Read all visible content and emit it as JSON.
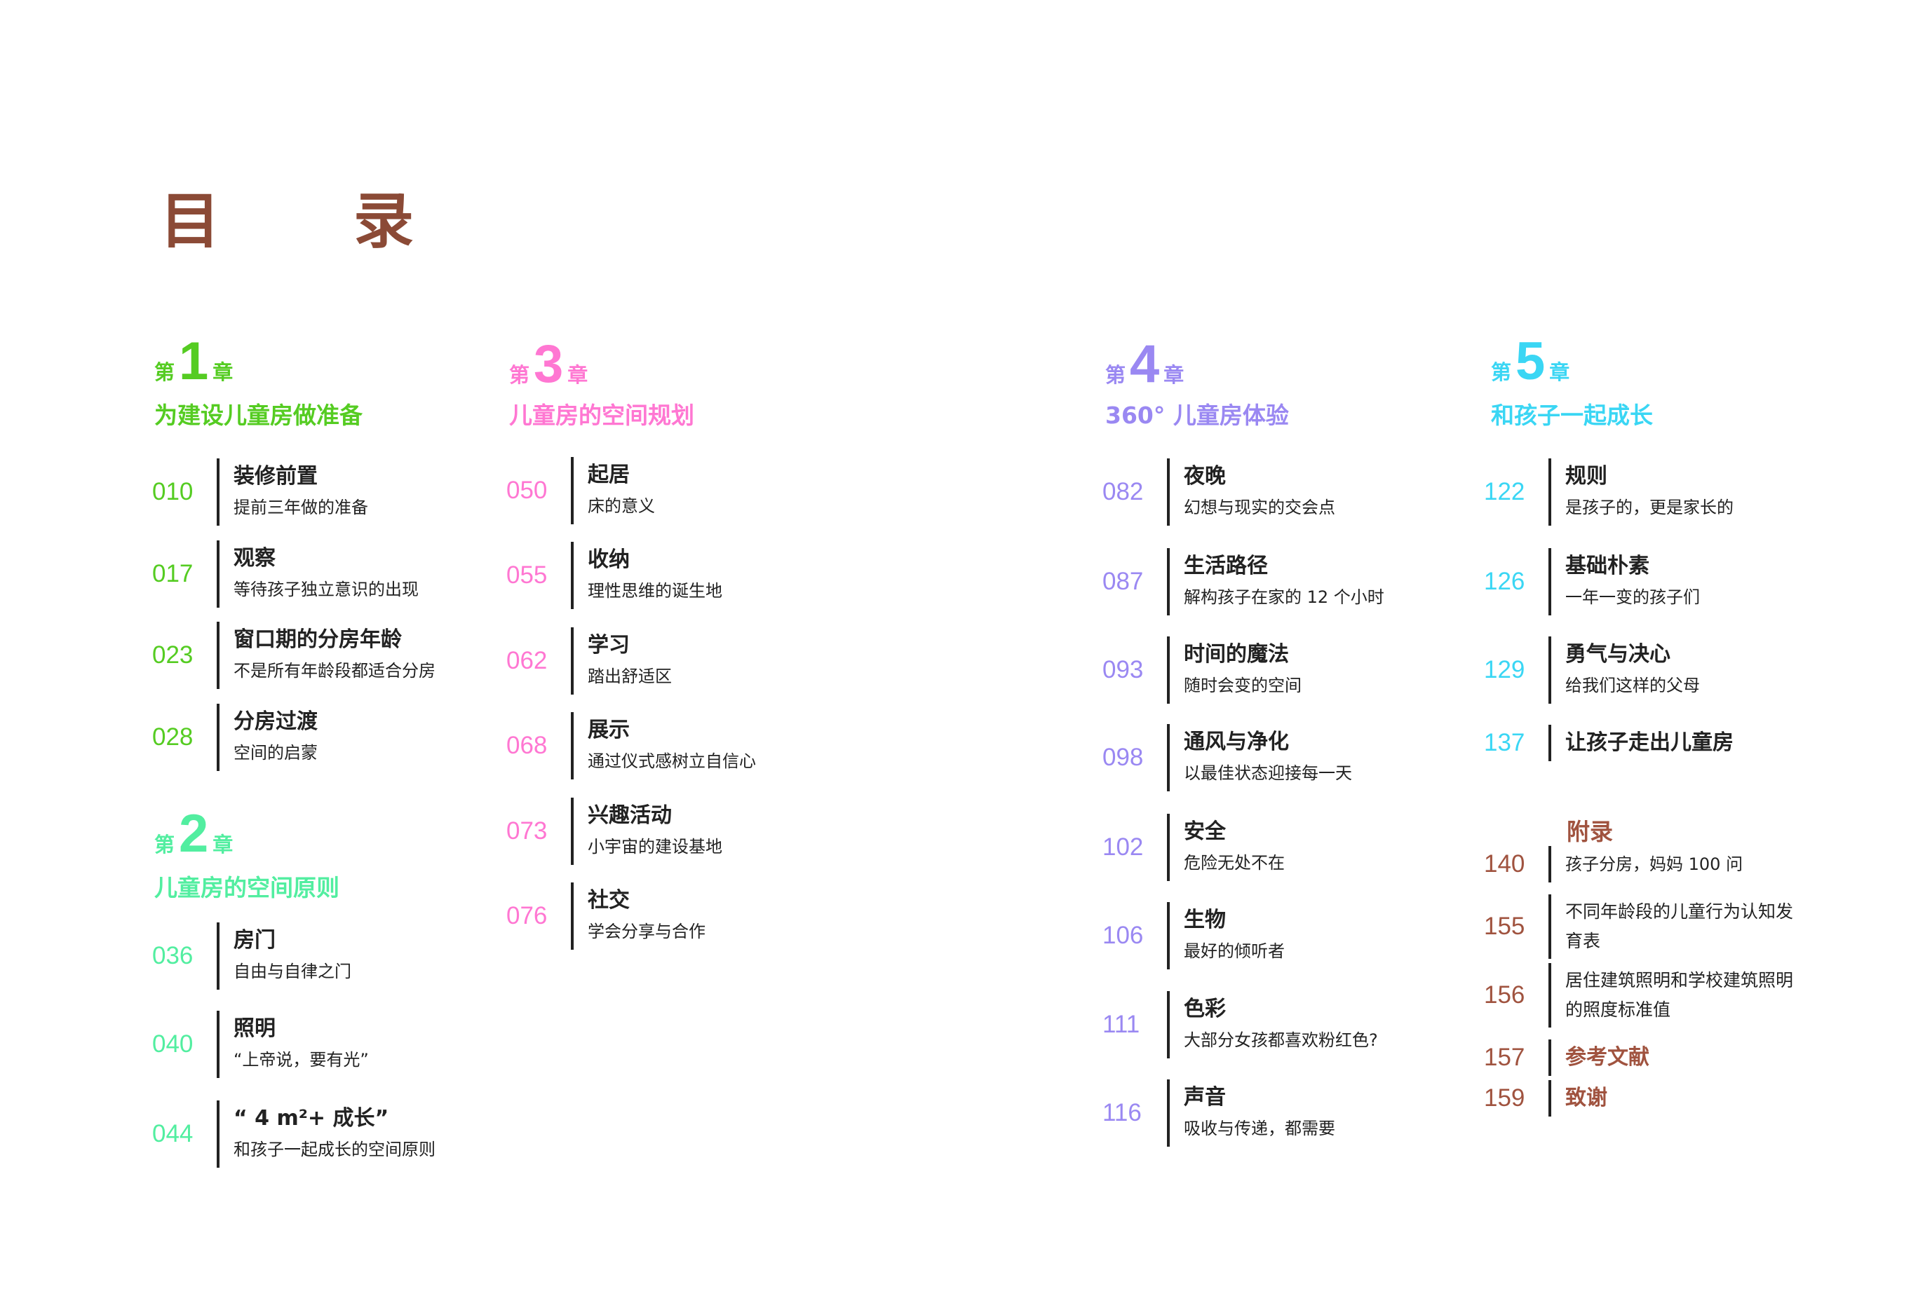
{
  "title": "目 录",
  "colors": {
    "ch1": "#55cc22",
    "ch2": "#52eea0",
    "ch3": "#ff77d2",
    "ch4": "#9a88f2",
    "ch5": "#3ad6f4",
    "appendix": "#a0533f",
    "title": "#8b4a36"
  },
  "chapters": [
    {
      "prefix": "第",
      "number": "1",
      "suffix": "章",
      "subtitle": "为建设儿童房做准备",
      "entries": [
        {
          "page": "010",
          "title": "装修前置",
          "sub": "提前三年做的准备"
        },
        {
          "page": "017",
          "title": "观察",
          "sub": "等待孩子独立意识的出现"
        },
        {
          "page": "023",
          "title": "窗口期的分房年龄",
          "sub": "不是所有年龄段都适合分房"
        },
        {
          "page": "028",
          "title": "分房过渡",
          "sub": "空间的启蒙"
        }
      ]
    },
    {
      "prefix": "第",
      "number": "2",
      "suffix": "章",
      "subtitle": "儿童房的空间原则",
      "entries": [
        {
          "page": "036",
          "title": "房门",
          "sub": "自由与自律之门"
        },
        {
          "page": "040",
          "title": "照明",
          "sub": "“上帝说，要有光”"
        },
        {
          "page": "044",
          "title": "“ 4 m²+ 成长”",
          "sub": "和孩子一起成长的空间原则"
        }
      ]
    },
    {
      "prefix": "第",
      "number": "3",
      "suffix": "章",
      "subtitle": "儿童房的空间规划",
      "entries": [
        {
          "page": "050",
          "title": "起居",
          "sub": "床的意义"
        },
        {
          "page": "055",
          "title": "收纳",
          "sub": "理性思维的诞生地"
        },
        {
          "page": "062",
          "title": "学习",
          "sub": "踏出舒适区"
        },
        {
          "page": "068",
          "title": "展示",
          "sub": "通过仪式感树立自信心"
        },
        {
          "page": "073",
          "title": "兴趣活动",
          "sub": "小宇宙的建设基地"
        },
        {
          "page": "076",
          "title": "社交",
          "sub": "学会分享与合作"
        }
      ]
    },
    {
      "prefix": "第",
      "number": "4",
      "suffix": "章",
      "subtitle": "360° 儿童房体验",
      "entries": [
        {
          "page": "082",
          "title": "夜晚",
          "sub": "幻想与现实的交会点"
        },
        {
          "page": "087",
          "title": "生活路径",
          "sub": "解构孩子在家的 12 个小时"
        },
        {
          "page": "093",
          "title": "时间的魔法",
          "sub": "随时会变的空间"
        },
        {
          "page": "098",
          "title": "通风与净化",
          "sub": "以最佳状态迎接每一天"
        },
        {
          "page": "102",
          "title": "安全",
          "sub": "危险无处不在"
        },
        {
          "page": "106",
          "title": "生物",
          "sub": "最好的倾听者"
        },
        {
          "page": "111",
          "title": "色彩",
          "sub": "大部分女孩都喜欢粉红色?"
        },
        {
          "page": "116",
          "title": "声音",
          "sub": "吸收与传递，都需要"
        }
      ]
    },
    {
      "prefix": "第",
      "number": "5",
      "suffix": "章",
      "subtitle": "和孩子一起成长",
      "entries": [
        {
          "page": "122",
          "title": "规则",
          "sub": "是孩子的，更是家长的"
        },
        {
          "page": "126",
          "title": "基础朴素",
          "sub": "一年一变的孩子们"
        },
        {
          "page": "129",
          "title": "勇气与决心",
          "sub": "给我们这样的父母"
        },
        {
          "page": "137",
          "title": "让孩子走出儿童房",
          "sub": ""
        }
      ]
    }
  ],
  "appendix": {
    "heading": "附录",
    "entries": [
      {
        "page": "140",
        "text": "孩子分房，妈妈 100 问"
      },
      {
        "page": "155",
        "text": "不同年龄段的儿童行为认知发育表"
      },
      {
        "page": "156",
        "text": "居住建筑照明和学校建筑照明的照度标准值"
      },
      {
        "page": "157",
        "text": "参考文献"
      },
      {
        "page": "159",
        "text": "致谢"
      }
    ]
  }
}
